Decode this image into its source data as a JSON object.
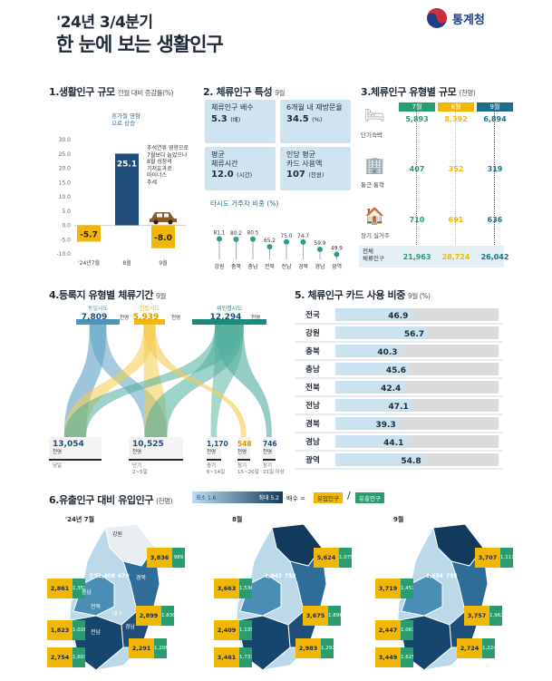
{
  "header": {
    "title_line1": "'24년 3/4분기",
    "title_line2": "한 눈에 보는 생활인구",
    "logo_text": "통계청",
    "logo_icon": "taegeuk-icon"
  },
  "s1": {
    "title": "1.생활인구 규모",
    "subtitle": "전월 대비 증감률(%)",
    "note_aug": "휴가철 영향\n으로 상승",
    "note_sep": "추석연휴 영향으로\n7월보다 늘었으나\n8월 성장의\n기저효과로\n마이너스\n추세"
  },
  "s2": {
    "title": "2. 체류인구 특성",
    "subtitle": "9월",
    "cards": [
      {
        "label": "체류인구 배수",
        "value": "5.3",
        "unit": "(배)"
      },
      {
        "label": "6개월 내 재방문율",
        "value": "34.5",
        "unit": "(%)"
      },
      {
        "label": "평균\n체류시간",
        "value": "12.0",
        "unit": "(시간)"
      },
      {
        "label": "인당 평균\n카드 사용액",
        "value": "107",
        "unit": "(천원)"
      }
    ],
    "lolli_title": "타시도 거주자 비중 (%)"
  },
  "s3": {
    "title": "3.체류인구 유형별 규모",
    "subtitle": "(천명)",
    "months": [
      "7월",
      "8월",
      "9월"
    ],
    "rows": [
      {
        "label": "단기숙박",
        "values": [
          "5,893",
          "8,392",
          "6,894"
        ],
        "icon": "bed-icon"
      },
      {
        "label": "통근·통학",
        "values": [
          "407",
          "352",
          "319"
        ],
        "icon": "building-icon"
      },
      {
        "label": "장기 실거주",
        "values": [
          "710",
          "691",
          "636"
        ],
        "icon": "house-icon"
      }
    ],
    "total_label": "전체\n체류인구",
    "totals": [
      "21,963",
      "28,724",
      "26,042"
    ]
  },
  "s4": {
    "title": "4.등록지 유형별 체류기간",
    "subtitle": "9월",
    "sources": [
      {
        "label": "동일시도",
        "value": "7,809",
        "unit": "천명"
      },
      {
        "label": "인접시도",
        "value": "5,939",
        "unit": "천명"
      },
      {
        "label": "비인접시도",
        "value": "12,294",
        "unit": "천명"
      }
    ],
    "targets": [
      {
        "label": "당일",
        "value": "13,054",
        "unit": "천명"
      },
      {
        "label": "단기\n2~5일",
        "value": "10,525",
        "unit": "천명"
      },
      {
        "label": "중기\n6~14일",
        "value": "1,170",
        "unit": "천명"
      },
      {
        "label": "장기\n15~20일",
        "value": "548",
        "unit": "천명"
      },
      {
        "label": "장기\n21일 이상",
        "value": "746",
        "unit": "천명"
      }
    ]
  },
  "s5": {
    "title": "5. 체류인구 카드 사용 비중",
    "subtitle": "9월 (%)"
  },
  "s6": {
    "title": "6.유출인구 대비 유입인구",
    "subtitle": "(천명)",
    "legend_min": "최소 1.6",
    "legend_max": "최대 5.2",
    "legend_ratio": "배수 =",
    "legend_in": "유입인구",
    "legend_out": "유출인구",
    "maps": [
      {
        "label": "'24년 7월",
        "pairs": [
          [
            "3,836",
            "989"
          ],
          [
            "2,861",
            "1,357"
          ],
          [
            "2,899",
            "1,830"
          ],
          [
            "1,823",
            "1,028"
          ],
          [
            "2,754",
            "1,603"
          ],
          [
            "2,291",
            "1,206"
          ]
        ],
        "region_labels": [
          "강원",
          "충북",
          "충남",
          "경북",
          "전북",
          "대구",
          "경남",
          "전남"
        ],
        "inner": [
          "1,408",
          "670"
        ]
      },
      {
        "label": "8월",
        "pairs": [
          [
            "5,624",
            "1,075"
          ],
          [
            "3,663",
            "1,536"
          ],
          [
            "3,675",
            "1,896"
          ],
          [
            "2,409",
            "1,135"
          ],
          [
            "3,461",
            "1,737"
          ],
          [
            "2,983",
            "1,297"
          ]
        ],
        "region_labels": [],
        "inner": [
          "1,943",
          "752"
        ]
      },
      {
        "label": "9월",
        "pairs": [
          [
            "3,707",
            "1,111"
          ],
          [
            "3,719",
            "1,457"
          ],
          [
            "3,757",
            "1,962"
          ],
          [
            "2,447",
            "1,067"
          ],
          [
            "3,449",
            "1,625"
          ],
          [
            "2,724",
            "1,224"
          ]
        ],
        "region_labels": [],
        "inner": [
          "1,654",
          "735"
        ]
      }
    ]
  },
  "colors": {
    "navy": "#1f4e7a",
    "yellow": "#f2b705",
    "teal": "#1c8a7a",
    "green": "#2a9d6e",
    "lightblue": "#cfe3f0"
  },
  "chart_data": [
    {
      "type": "bar",
      "title": "1.생활인구 규모",
      "ylabel": "전월 대비 증감률(%)",
      "categories": [
        "'24년7월",
        "8월",
        "9월"
      ],
      "values": [
        -5.7,
        25.1,
        -8.0
      ],
      "ylim": [
        -10,
        30
      ],
      "yticks": [
        "30.0",
        "25.0",
        "20.0",
        "15.0",
        "10.0",
        "5.0",
        "0.0",
        "-5.0",
        "-10.0"
      ],
      "labels": [
        "-5.7",
        "25.1",
        "-8.0"
      ]
    },
    {
      "type": "scatter",
      "title": "타시도 거주자 비중 (%)",
      "categories": [
        "강원",
        "충북",
        "충남",
        "전북",
        "전남",
        "경북",
        "경남",
        "광역"
      ],
      "values": [
        81.1,
        80.2,
        80.5,
        65.2,
        75.0,
        74.7,
        59.9,
        49.9
      ],
      "labels": [
        "81.1",
        "80.2",
        "80.5",
        "65.2",
        "75.0",
        "74.7",
        "59.9",
        "49.9"
      ]
    },
    {
      "type": "bar",
      "title": "5. 체류인구 카드 사용 비중",
      "categories": [
        "전국",
        "강원",
        "충북",
        "충남",
        "전북",
        "전남",
        "경북",
        "경남",
        "광역"
      ],
      "values": [
        46.9,
        56.7,
        40.3,
        45.6,
        42.4,
        47.1,
        39.3,
        44.1,
        54.8
      ],
      "labels": [
        "46.9",
        "56.7",
        "40.3",
        "45.6",
        "42.4",
        "47.1",
        "39.3",
        "44.1",
        "54.8"
      ],
      "xlim": [
        0,
        100
      ]
    }
  ]
}
